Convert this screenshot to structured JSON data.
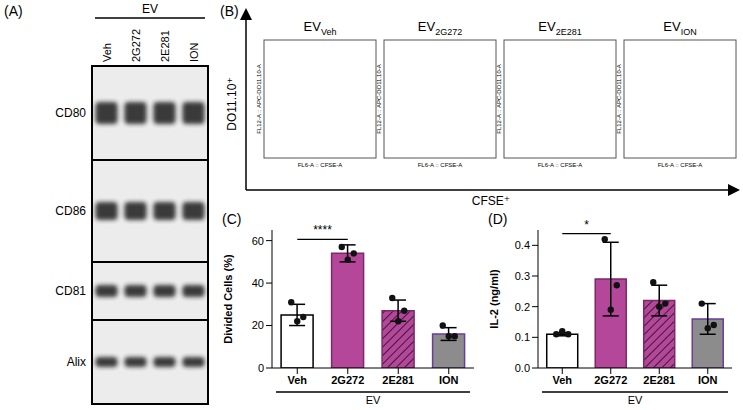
{
  "panel_labels": [
    "(A)",
    "(B)",
    "(C)",
    "(D)"
  ],
  "blot": {
    "group_label": "EV",
    "lanes": [
      "Veh",
      "2G272",
      "2E281",
      "ION"
    ],
    "rows": [
      "CD80",
      "CD86",
      "CD81",
      "Alix"
    ]
  },
  "flow": {
    "y_label": "DO11.10⁺",
    "x_label": "CFSE⁺",
    "plot_y_label": "FL12-A :: APC-DO11.10-A",
    "plot_x_label": "FL6-A :: CFSE-A",
    "plots": [
      {
        "title": "EV",
        "subscript": "Veh"
      },
      {
        "title": "EV",
        "subscript": "2G272"
      },
      {
        "title": "EV",
        "subscript": "2E281"
      },
      {
        "title": "EV",
        "subscript": "ION"
      }
    ]
  },
  "chart_data": [
    {
      "type": "bar",
      "y_label": "Divided Cells (%)",
      "group_label": "EV",
      "categories": [
        "Veh",
        "2G272",
        "2E281",
        "ION"
      ],
      "values": [
        25,
        54,
        27,
        16
      ],
      "errors": [
        5,
        4,
        5,
        3
      ],
      "points": [
        [
          31,
          22,
          24
        ],
        [
          57,
          51,
          54
        ],
        [
          33,
          22,
          27
        ],
        [
          20,
          15,
          15
        ]
      ],
      "colors": [
        "#ffffff",
        "#b5479b",
        "#b5479b",
        "#8c8c8c"
      ],
      "ylim": [
        0,
        65
      ],
      "yticks": [
        0,
        20,
        40,
        60
      ],
      "significance": [
        {
          "from": "Veh",
          "to": "2G272",
          "label": "****"
        }
      ]
    },
    {
      "type": "bar",
      "y_label": "IL-2 (ng/ml)",
      "group_label": "EV",
      "categories": [
        "Veh",
        "2G272",
        "2E281",
        "ION"
      ],
      "values": [
        0.11,
        0.29,
        0.22,
        0.16
      ],
      "errors": [
        0.005,
        0.12,
        0.05,
        0.05
      ],
      "points": [
        [
          0.11,
          0.12,
          0.11
        ],
        [
          0.42,
          0.19,
          0.27
        ],
        [
          0.28,
          0.2,
          0.21
        ],
        [
          0.21,
          0.13,
          0.14
        ]
      ],
      "colors": [
        "#ffffff",
        "#b5479b",
        "#b5479b",
        "#8c8c8c"
      ],
      "ylim": [
        0,
        0.45
      ],
      "yticks": [
        {
          "value": 0,
          "label": "0.0"
        },
        0.1,
        0.2,
        0.3,
        0.4
      ],
      "significance": [
        {
          "from": "Veh",
          "to": "2G272",
          "label": "*"
        }
      ]
    }
  ]
}
